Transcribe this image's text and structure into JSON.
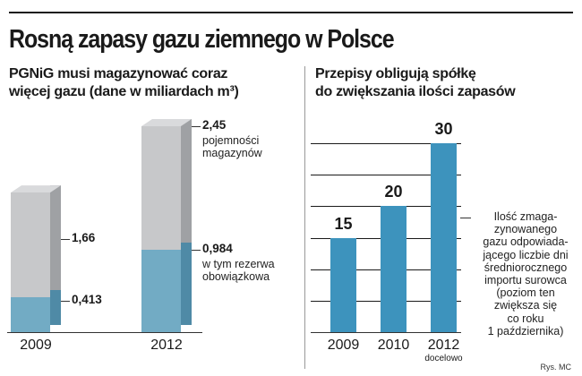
{
  "title": "Rosną zapasy gazu ziemnego w Polsce",
  "left_panel": {
    "subtitle_line1": "PGNiG musi magazynować coraz",
    "subtitle_line2": "więcej gazu (dane w miliardach m³)"
  },
  "right_panel": {
    "subtitle_line1": "Przepisy obligują spółkę",
    "subtitle_line2": "do zwiększania ilości zapasów",
    "note_lines": [
      "Ilość zmaga-",
      "zynowanego",
      "gazu odpowiada-",
      "jącego liczbie dni",
      "średniorocznego",
      "importu surowca",
      "(poziom ten",
      "zwiększa się",
      "co roku",
      "1 października)"
    ]
  },
  "credit": "Rys. MC",
  "colors": {
    "capacity": "#c7c8ca",
    "capacity_side": "#9fa1a4",
    "reserve": "#72abc4",
    "reserve_side": "#4f8aa6",
    "bar_blue": "#3d93bd"
  },
  "chart_data": [
    {
      "type": "bar",
      "title": "PGNiG musi magazynować coraz więcej gazu (dane w miliardach m³)",
      "categories": [
        "2009",
        "2012"
      ],
      "series": [
        {
          "name": "pojemności magazynów",
          "values": [
            1.66,
            2.45
          ]
        },
        {
          "name": "w tym rezerwa obowiązkowa",
          "values": [
            0.413,
            0.984
          ]
        }
      ],
      "value_labels": {
        "capacity": [
          "1,66",
          "2,45"
        ],
        "reserve": [
          "0,413",
          "0,984"
        ]
      },
      "annotations": [
        {
          "category": "2012",
          "series": "pojemności magazynów",
          "lines": [
            "pojemności",
            "magazynów"
          ]
        },
        {
          "category": "2012",
          "series": "w tym rezerwa obowiązkowa",
          "lines": [
            "w tym rezerwa",
            "obowiązkowa"
          ]
        }
      ],
      "ylim": [
        0,
        2.45
      ]
    },
    {
      "type": "bar",
      "title": "Przepisy obligują spółkę do zwiększania ilości zapasów",
      "categories": [
        "2009",
        "2010",
        "2012"
      ],
      "category_notes": [
        "",
        "",
        "docelowo"
      ],
      "values": [
        15,
        20,
        30
      ],
      "ylim": [
        0,
        35
      ],
      "grid": true
    }
  ]
}
